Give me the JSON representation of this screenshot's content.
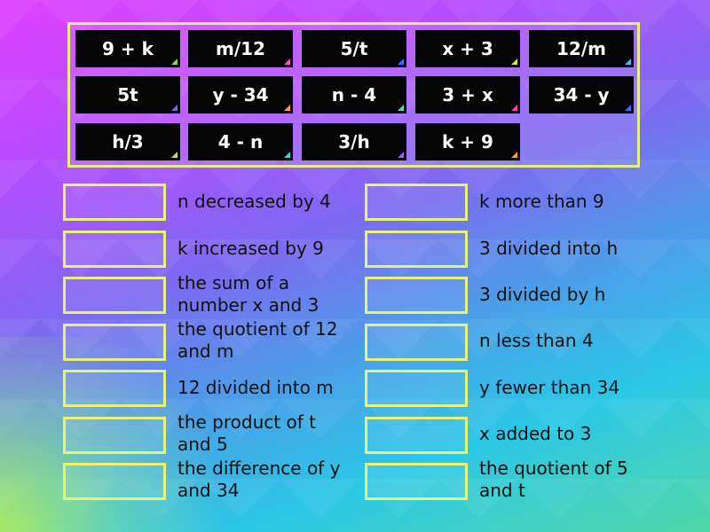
{
  "tiles": [
    {
      "text": "9 + k",
      "corner": "#7be14a"
    },
    {
      "text": "m/12",
      "corner": "#ff4fd0"
    },
    {
      "text": "5/t",
      "corner": "#3b6bff"
    },
    {
      "text": "x + 3",
      "corner": "#c7ef3a"
    },
    {
      "text": "12/m",
      "corner": "#49b3ff"
    },
    {
      "text": "5t",
      "corner": "#6a6bff"
    },
    {
      "text": "y - 34",
      "corner": "#ffa040"
    },
    {
      "text": "n - 4",
      "corner": "#4ee0a0"
    },
    {
      "text": "3 + x",
      "corner": "#ff3fa0"
    },
    {
      "text": "34 - y",
      "corner": "#3b6bff"
    },
    {
      "text": "h/3",
      "corner": "#c7ef3a"
    },
    {
      "text": "4 - n",
      "corner": "#3ad0e8"
    },
    {
      "text": "3/h",
      "corner": "#a55cff"
    },
    {
      "text": "k + 9",
      "corner": "#ff9a3a"
    }
  ],
  "left_prompts": [
    "n decreased by 4",
    "k increased by 9",
    "the sum of a number x and 3",
    "the quotient of 12 and m",
    "12 divided into m",
    "the product of t and 5",
    "the difference of y and 34"
  ],
  "right_prompts": [
    "k more than 9",
    "3 divided into h",
    "3 divided by h",
    "n less than 4",
    "y fewer than 34",
    "x added to 3",
    "the quotient of 5 and t"
  ]
}
